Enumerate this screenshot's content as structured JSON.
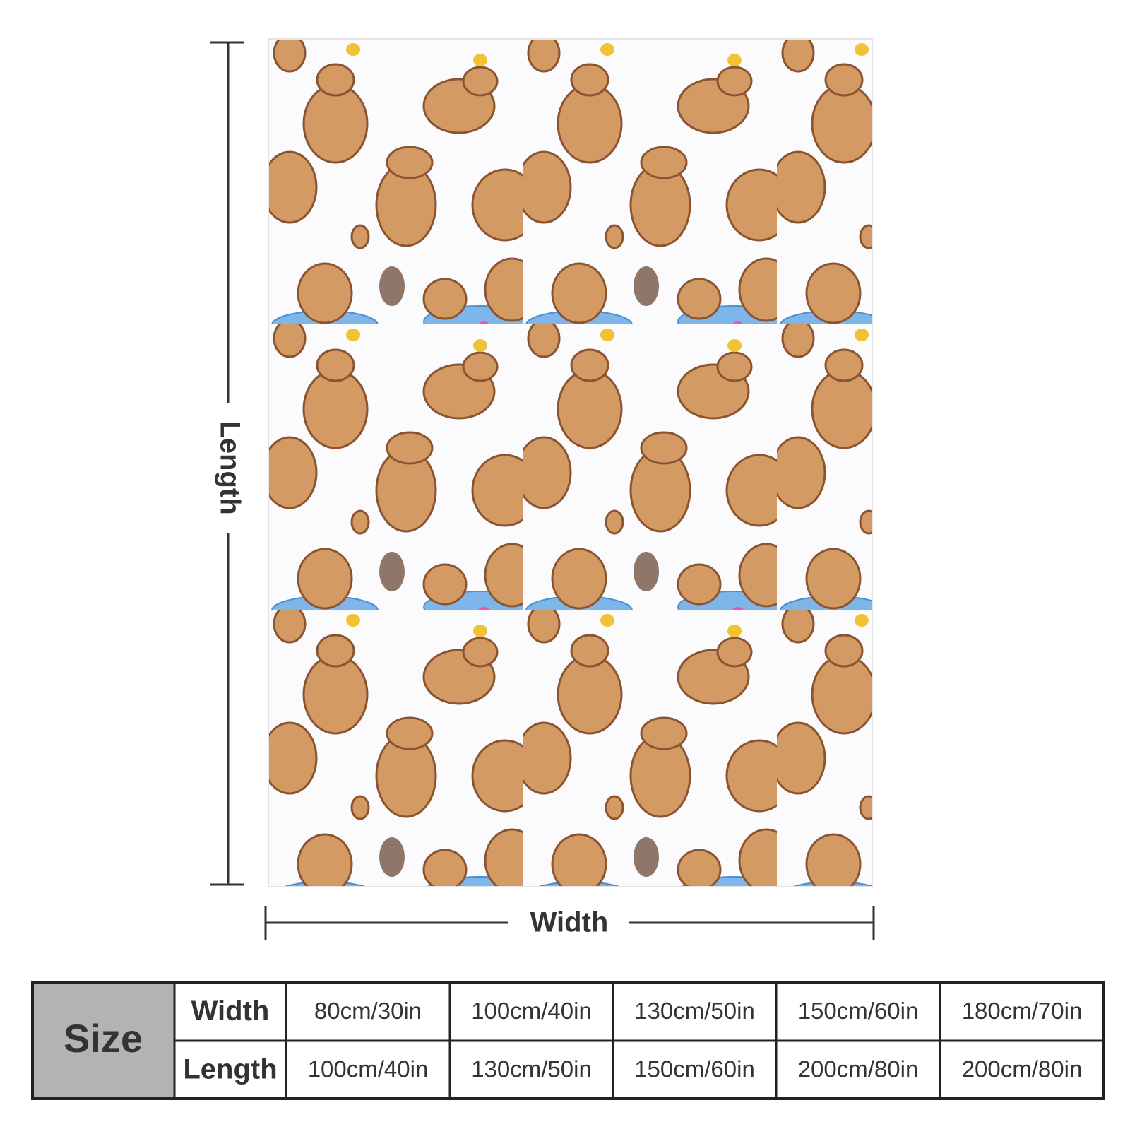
{
  "dimensions": {
    "length_label": "Length",
    "width_label": "Width"
  },
  "table": {
    "corner": "Size",
    "rows": [
      [
        "Width",
        "80cm/30in",
        "100cm/40in",
        "130cm/50in",
        "150cm/60in",
        "180cm/70in"
      ],
      [
        "Length",
        "100cm/40in",
        "130cm/50in",
        "150cm/60in",
        "200cm/80in",
        "200cm/80in"
      ]
    ]
  }
}
